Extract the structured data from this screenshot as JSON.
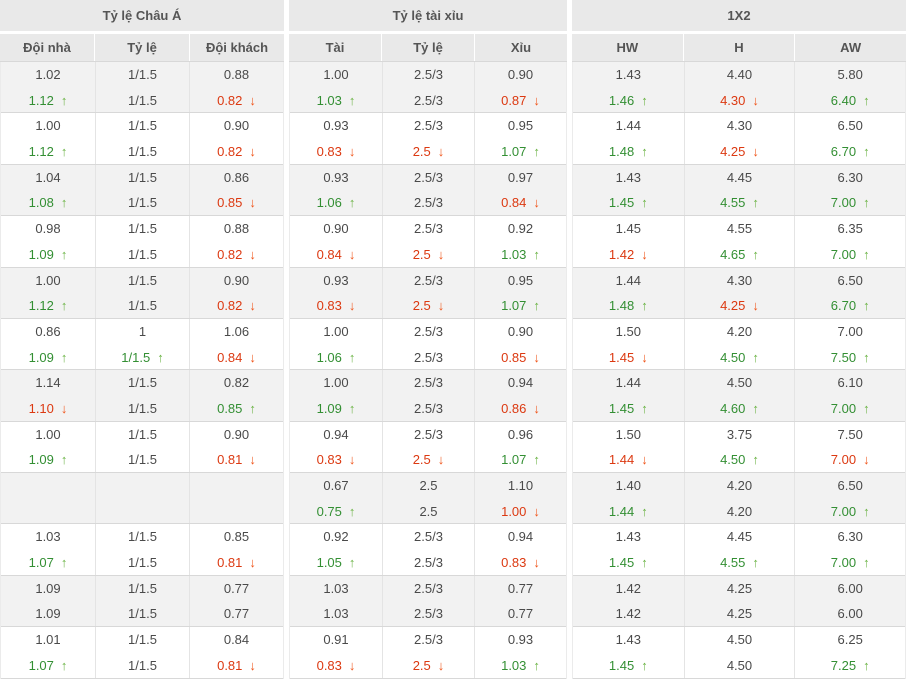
{
  "colors": {
    "header_bg": "#e9e9e9",
    "header_text": "#555555",
    "row_shade_bg": "#f2f2f2",
    "text": "#4a4a4a",
    "up_green": "#338f33",
    "up_arrow_green": "#6cb446",
    "down_red": "#dc3911",
    "down_arrow_red": "#f0561c"
  },
  "table": {
    "groups": [
      {
        "label": "Tỷ lệ Châu Á",
        "columns": [
          "Đội nhà",
          "Tỷ lệ",
          "Đội khách"
        ]
      },
      {
        "label": "Tỷ lệ tài xỉu",
        "columns": [
          "Tài",
          "Tỷ lệ",
          "Xỉu"
        ]
      },
      {
        "label": "1X2",
        "columns": [
          "HW",
          "H",
          "AW"
        ]
      }
    ],
    "legend": {
      "up_marker": "↑",
      "down_marker": "↓"
    },
    "rows": [
      [
        "1.02",
        "1/1.5",
        "0.88",
        "1.00",
        "2.5/3",
        "0.90",
        "1.43",
        "4.40",
        "5.80"
      ],
      [
        "1.12|u",
        "1/1.5",
        "0.82|d",
        "1.03|u",
        "2.5/3",
        "0.87|d",
        "1.46|u",
        "4.30|d",
        "6.40|u"
      ],
      [
        "1.00",
        "1/1.5",
        "0.90",
        "0.93",
        "2.5/3",
        "0.95",
        "1.44",
        "4.30",
        "6.50"
      ],
      [
        "1.12|u",
        "1/1.5",
        "0.82|d",
        "0.83|d",
        "2.5|d",
        "1.07|u",
        "1.48|u",
        "4.25|d",
        "6.70|u"
      ],
      [
        "1.04",
        "1/1.5",
        "0.86",
        "0.93",
        "2.5/3",
        "0.97",
        "1.43",
        "4.45",
        "6.30"
      ],
      [
        "1.08|u",
        "1/1.5",
        "0.85|d",
        "1.06|u",
        "2.5/3",
        "0.84|d",
        "1.45|u",
        "4.55|u",
        "7.00|u"
      ],
      [
        "0.98",
        "1/1.5",
        "0.88",
        "0.90",
        "2.5/3",
        "0.92",
        "1.45",
        "4.55",
        "6.35"
      ],
      [
        "1.09|u",
        "1/1.5",
        "0.82|d",
        "0.84|d",
        "2.5|d",
        "1.03|u",
        "1.42|d",
        "4.65|u",
        "7.00|u"
      ],
      [
        "1.00",
        "1/1.5",
        "0.90",
        "0.93",
        "2.5/3",
        "0.95",
        "1.44",
        "4.30",
        "6.50"
      ],
      [
        "1.12|u",
        "1/1.5",
        "0.82|d",
        "0.83|d",
        "2.5|d",
        "1.07|u",
        "1.48|u",
        "4.25|d",
        "6.70|u"
      ],
      [
        "0.86",
        "1",
        "1.06",
        "1.00",
        "2.5/3",
        "0.90",
        "1.50",
        "4.20",
        "7.00"
      ],
      [
        "1.09|u",
        "1/1.5|u",
        "0.84|d",
        "1.06|u",
        "2.5/3",
        "0.85|d",
        "1.45|d",
        "4.50|u",
        "7.50|u"
      ],
      [
        "1.14",
        "1/1.5",
        "0.82",
        "1.00",
        "2.5/3",
        "0.94",
        "1.44",
        "4.50",
        "6.10"
      ],
      [
        "1.10|d",
        "1/1.5",
        "0.85|u",
        "1.09|u",
        "2.5/3",
        "0.86|d",
        "1.45|u",
        "4.60|u",
        "7.00|u"
      ],
      [
        "1.00",
        "1/1.5",
        "0.90",
        "0.94",
        "2.5/3",
        "0.96",
        "1.50",
        "3.75",
        "7.50"
      ],
      [
        "1.09|u",
        "1/1.5",
        "0.81|d",
        "0.83|d",
        "2.5|d",
        "1.07|u",
        "1.44|d",
        "4.50|u",
        "7.00|d"
      ],
      [
        "",
        "",
        "",
        "0.67",
        "2.5",
        "1.10",
        "1.40",
        "4.20",
        "6.50"
      ],
      [
        "",
        "",
        "",
        "0.75|u",
        "2.5",
        "1.00|d",
        "1.44|u",
        "4.20",
        "7.00|u"
      ],
      [
        "1.03",
        "1/1.5",
        "0.85",
        "0.92",
        "2.5/3",
        "0.94",
        "1.43",
        "4.45",
        "6.30"
      ],
      [
        "1.07|u",
        "1/1.5",
        "0.81|d",
        "1.05|u",
        "2.5/3",
        "0.83|d",
        "1.45|u",
        "4.55|u",
        "7.00|u"
      ],
      [
        "1.09",
        "1/1.5",
        "0.77",
        "1.03",
        "2.5/3",
        "0.77",
        "1.42",
        "4.25",
        "6.00"
      ],
      [
        "1.09",
        "1/1.5",
        "0.77",
        "1.03",
        "2.5/3",
        "0.77",
        "1.42",
        "4.25",
        "6.00"
      ],
      [
        "1.01",
        "1/1.5",
        "0.84",
        "0.91",
        "2.5/3",
        "0.93",
        "1.43",
        "4.50",
        "6.25"
      ],
      [
        "1.07|u",
        "1/1.5",
        "0.81|d",
        "0.83|d",
        "2.5|d",
        "1.03|u",
        "1.45|u",
        "4.50",
        "7.25|u"
      ]
    ]
  }
}
